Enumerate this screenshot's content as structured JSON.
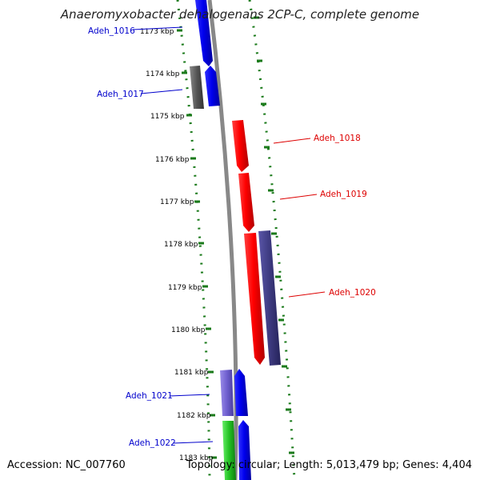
{
  "title": "Anaeromyxobacter dehalogenans 2CP-C, complete genome",
  "footer": {
    "accession": "Accession: NC_007760",
    "info": "Topology: circular; Length: 5,013,479 bp; Genes: 4,404"
  },
  "ticks": [
    "1173 kbp",
    "1174 kbp",
    "1175 kbp",
    "1176 kbp",
    "1177 kbp",
    "1178 kbp",
    "1179 kbp",
    "1180 kbp",
    "1181 kbp",
    "1182 kbp",
    "1183 kbp"
  ],
  "genes": [
    {
      "name": "Adeh_1016",
      "color": "#0000cc"
    },
    {
      "name": "Adeh_1017",
      "color": "#0000cc"
    },
    {
      "name": "Adeh_1018",
      "color": "#dd0000"
    },
    {
      "name": "Adeh_1019",
      "color": "#dd0000"
    },
    {
      "name": "Adeh_1020",
      "color": "#dd0000"
    },
    {
      "name": "Adeh_1021",
      "color": "#0000cc"
    },
    {
      "name": "Adeh_1022",
      "color": "#0000cc"
    }
  ],
  "colors": {
    "backbone": "#888888",
    "dotted_ring": "#1a7a1a",
    "blue_feature": "#0000ee",
    "red_feature": "#ff0000",
    "slate_feature": "#3d3a80",
    "gray_feature": "#555555",
    "lavender_feature": "#7060d0",
    "green_feature": "#22c022"
  }
}
